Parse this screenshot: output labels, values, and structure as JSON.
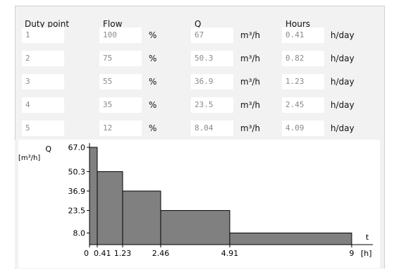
{
  "headers": {
    "duty_point": "Duty point",
    "flow": "Flow",
    "q": "Q",
    "hours": "Hours"
  },
  "rows": [
    {
      "duty_point": "1",
      "flow": "100",
      "flow_unit": "%",
      "q": "67",
      "q_unit": "m³/h",
      "hours": "0.41",
      "hours_unit": "h/day"
    },
    {
      "duty_point": "2",
      "flow": "75",
      "flow_unit": "%",
      "q": "50.3",
      "q_unit": "m³/h",
      "hours": "0.82",
      "hours_unit": "h/day"
    },
    {
      "duty_point": "3",
      "flow": "55",
      "flow_unit": "%",
      "q": "36.9",
      "q_unit": "m³/h",
      "hours": "1.23",
      "hours_unit": "h/day"
    },
    {
      "duty_point": "4",
      "flow": "35",
      "flow_unit": "%",
      "q": "23.5",
      "q_unit": "m³/h",
      "hours": "2.45",
      "hours_unit": "h/day"
    },
    {
      "duty_point": "5",
      "flow": "12",
      "flow_unit": "%",
      "q": "8.04",
      "q_unit": "m³/h",
      "hours": "4.09",
      "hours_unit": "h/day"
    }
  ],
  "chart_data": {
    "type": "bar",
    "ylabel": "Q",
    "yunit": "[m³/h]",
    "xlabel": "t",
    "xunit": "[h]",
    "xlim": [
      0,
      9
    ],
    "ylim": [
      0,
      67
    ],
    "ytick_labels": [
      "67.0",
      "50.3",
      "36.9",
      "23.5",
      "8.0"
    ],
    "ytick_values": [
      67,
      50.3,
      36.9,
      23.5,
      8
    ],
    "xtick_labels": [
      "0",
      "0.41",
      "1.23",
      "2.46",
      "4.91",
      "9"
    ],
    "xtick_values": [
      0,
      0.41,
      1.23,
      2.46,
      4.91,
      9
    ],
    "bars": [
      {
        "x0": 0,
        "x1": 0.41,
        "y": 67
      },
      {
        "x0": 0.41,
        "x1": 1.23,
        "y": 50.3
      },
      {
        "x0": 1.23,
        "x1": 2.46,
        "y": 36.9
      },
      {
        "x0": 2.46,
        "x1": 4.91,
        "y": 23.5
      },
      {
        "x0": 4.91,
        "x1": 9,
        "y": 8
      }
    ],
    "bar_color": "#808080",
    "grid": false
  }
}
